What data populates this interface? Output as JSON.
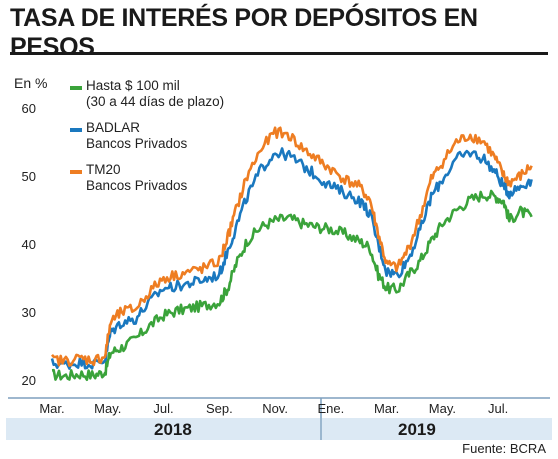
{
  "header": {
    "title": "TASA DE INTERÉS POR DEPÓSITOS EN PESOS"
  },
  "footer": {
    "source": "Fuente: BCRA"
  },
  "colors": {
    "green": "#3aa33a",
    "blue": "#1a78bf",
    "orange": "#ee7d22"
  },
  "chart_data": {
    "type": "line",
    "ylabel": "En %",
    "ylim": [
      20,
      60
    ],
    "yticks": [
      20,
      30,
      40,
      50,
      60
    ],
    "xlim": [
      0,
      17.5
    ],
    "x_tick_labels": [
      {
        "label": "Mar.",
        "x": 0
      },
      {
        "label": "May.",
        "x": 2
      },
      {
        "label": "Jul.",
        "x": 4
      },
      {
        "label": "Sep.",
        "x": 6
      },
      {
        "label": "Nov.",
        "x": 8
      },
      {
        "label": "Ene.",
        "x": 10
      },
      {
        "label": "Mar.",
        "x": 12
      },
      {
        "label": "May.",
        "x": 14
      },
      {
        "label": "Jul.",
        "x": 16
      }
    ],
    "year_labels": [
      {
        "label": "2018",
        "x": 4.5
      },
      {
        "label": "2019",
        "x": 13.3
      }
    ],
    "series": [
      {
        "name": "Hasta $ 100 mil",
        "subname": "(30 a 44 días de plazo)",
        "color": "#3aa33a",
        "points": [
          [
            0,
            20.8
          ],
          [
            0.5,
            20.6
          ],
          [
            1.0,
            20.9
          ],
          [
            1.5,
            20.7
          ],
          [
            1.9,
            21.2
          ],
          [
            2.1,
            24.0
          ],
          [
            2.5,
            24.8
          ],
          [
            3.0,
            26.0
          ],
          [
            3.5,
            28.0
          ],
          [
            4.0,
            29.5
          ],
          [
            4.5,
            30.2
          ],
          [
            5.0,
            30.6
          ],
          [
            5.5,
            31.0
          ],
          [
            6.0,
            31.5
          ],
          [
            6.3,
            33.5
          ],
          [
            6.6,
            37.0
          ],
          [
            7.0,
            40.5
          ],
          [
            7.5,
            42.5
          ],
          [
            8.0,
            43.5
          ],
          [
            8.5,
            43.8
          ],
          [
            9.0,
            43.0
          ],
          [
            9.5,
            42.5
          ],
          [
            10.0,
            42.2
          ],
          [
            10.5,
            41.5
          ],
          [
            11.0,
            40.5
          ],
          [
            11.4,
            39.5
          ],
          [
            11.7,
            35.5
          ],
          [
            12.0,
            33.5
          ],
          [
            12.4,
            33.3
          ],
          [
            12.8,
            35.5
          ],
          [
            13.2,
            37.5
          ],
          [
            13.6,
            40.5
          ],
          [
            14.0,
            43.0
          ],
          [
            14.5,
            45.0
          ],
          [
            15.0,
            46.5
          ],
          [
            15.5,
            47.3
          ],
          [
            15.9,
            47.0
          ],
          [
            16.2,
            46.3
          ],
          [
            16.4,
            43.5
          ],
          [
            16.8,
            44.8
          ],
          [
            17.2,
            44.0
          ]
        ]
      },
      {
        "name": "BADLAR",
        "subname": "Bancos Privados",
        "color": "#1a78bf",
        "points": [
          [
            0,
            22.5
          ],
          [
            0.5,
            22.3
          ],
          [
            1.0,
            22.6
          ],
          [
            1.5,
            22.4
          ],
          [
            1.9,
            23.0
          ],
          [
            2.1,
            27.0
          ],
          [
            2.5,
            28.5
          ],
          [
            3.0,
            29.0
          ],
          [
            3.5,
            31.5
          ],
          [
            4.0,
            33.5
          ],
          [
            4.5,
            33.8
          ],
          [
            5.0,
            34.3
          ],
          [
            5.5,
            34.8
          ],
          [
            6.0,
            35.5
          ],
          [
            6.3,
            39.0
          ],
          [
            6.6,
            42.5
          ],
          [
            7.0,
            47.0
          ],
          [
            7.5,
            51.0
          ],
          [
            8.0,
            53.5
          ],
          [
            8.5,
            53.0
          ],
          [
            9.0,
            51.5
          ],
          [
            9.5,
            50.0
          ],
          [
            10.0,
            48.5
          ],
          [
            10.5,
            47.5
          ],
          [
            11.0,
            46.5
          ],
          [
            11.4,
            44.5
          ],
          [
            11.7,
            40.0
          ],
          [
            12.0,
            36.0
          ],
          [
            12.4,
            35.5
          ],
          [
            12.8,
            38.0
          ],
          [
            13.2,
            42.0
          ],
          [
            13.6,
            47.0
          ],
          [
            14.0,
            49.5
          ],
          [
            14.5,
            52.5
          ],
          [
            15.0,
            53.5
          ],
          [
            15.5,
            52.5
          ],
          [
            15.9,
            50.5
          ],
          [
            16.2,
            48.5
          ],
          [
            16.4,
            47.5
          ],
          [
            16.8,
            48.5
          ],
          [
            17.2,
            49.5
          ]
        ]
      },
      {
        "name": "TM20",
        "subname": "Bancos Privados",
        "color": "#ee7d22",
        "points": [
          [
            0,
            23.0
          ],
          [
            0.5,
            22.8
          ],
          [
            1.0,
            23.2
          ],
          [
            1.5,
            22.9
          ],
          [
            1.9,
            23.5
          ],
          [
            2.1,
            28.5
          ],
          [
            2.5,
            30.0
          ],
          [
            3.0,
            30.5
          ],
          [
            3.5,
            33.0
          ],
          [
            4.0,
            35.0
          ],
          [
            4.5,
            35.5
          ],
          [
            5.0,
            36.0
          ],
          [
            5.5,
            36.5
          ],
          [
            6.0,
            37.5
          ],
          [
            6.3,
            41.0
          ],
          [
            6.6,
            45.0
          ],
          [
            7.0,
            50.0
          ],
          [
            7.5,
            54.0
          ],
          [
            8.0,
            56.5
          ],
          [
            8.5,
            56.0
          ],
          [
            9.0,
            54.0
          ],
          [
            9.5,
            52.5
          ],
          [
            10.0,
            51.0
          ],
          [
            10.5,
            49.5
          ],
          [
            11.0,
            48.5
          ],
          [
            11.4,
            46.5
          ],
          [
            11.7,
            41.5
          ],
          [
            12.0,
            37.0
          ],
          [
            12.4,
            36.5
          ],
          [
            12.8,
            39.5
          ],
          [
            13.2,
            44.0
          ],
          [
            13.6,
            49.5
          ],
          [
            14.0,
            52.0
          ],
          [
            14.5,
            55.0
          ],
          [
            15.0,
            56.0
          ],
          [
            15.5,
            55.0
          ],
          [
            15.9,
            52.5
          ],
          [
            16.2,
            50.0
          ],
          [
            16.4,
            49.0
          ],
          [
            16.8,
            50.0
          ],
          [
            17.2,
            51.5
          ]
        ]
      }
    ]
  }
}
